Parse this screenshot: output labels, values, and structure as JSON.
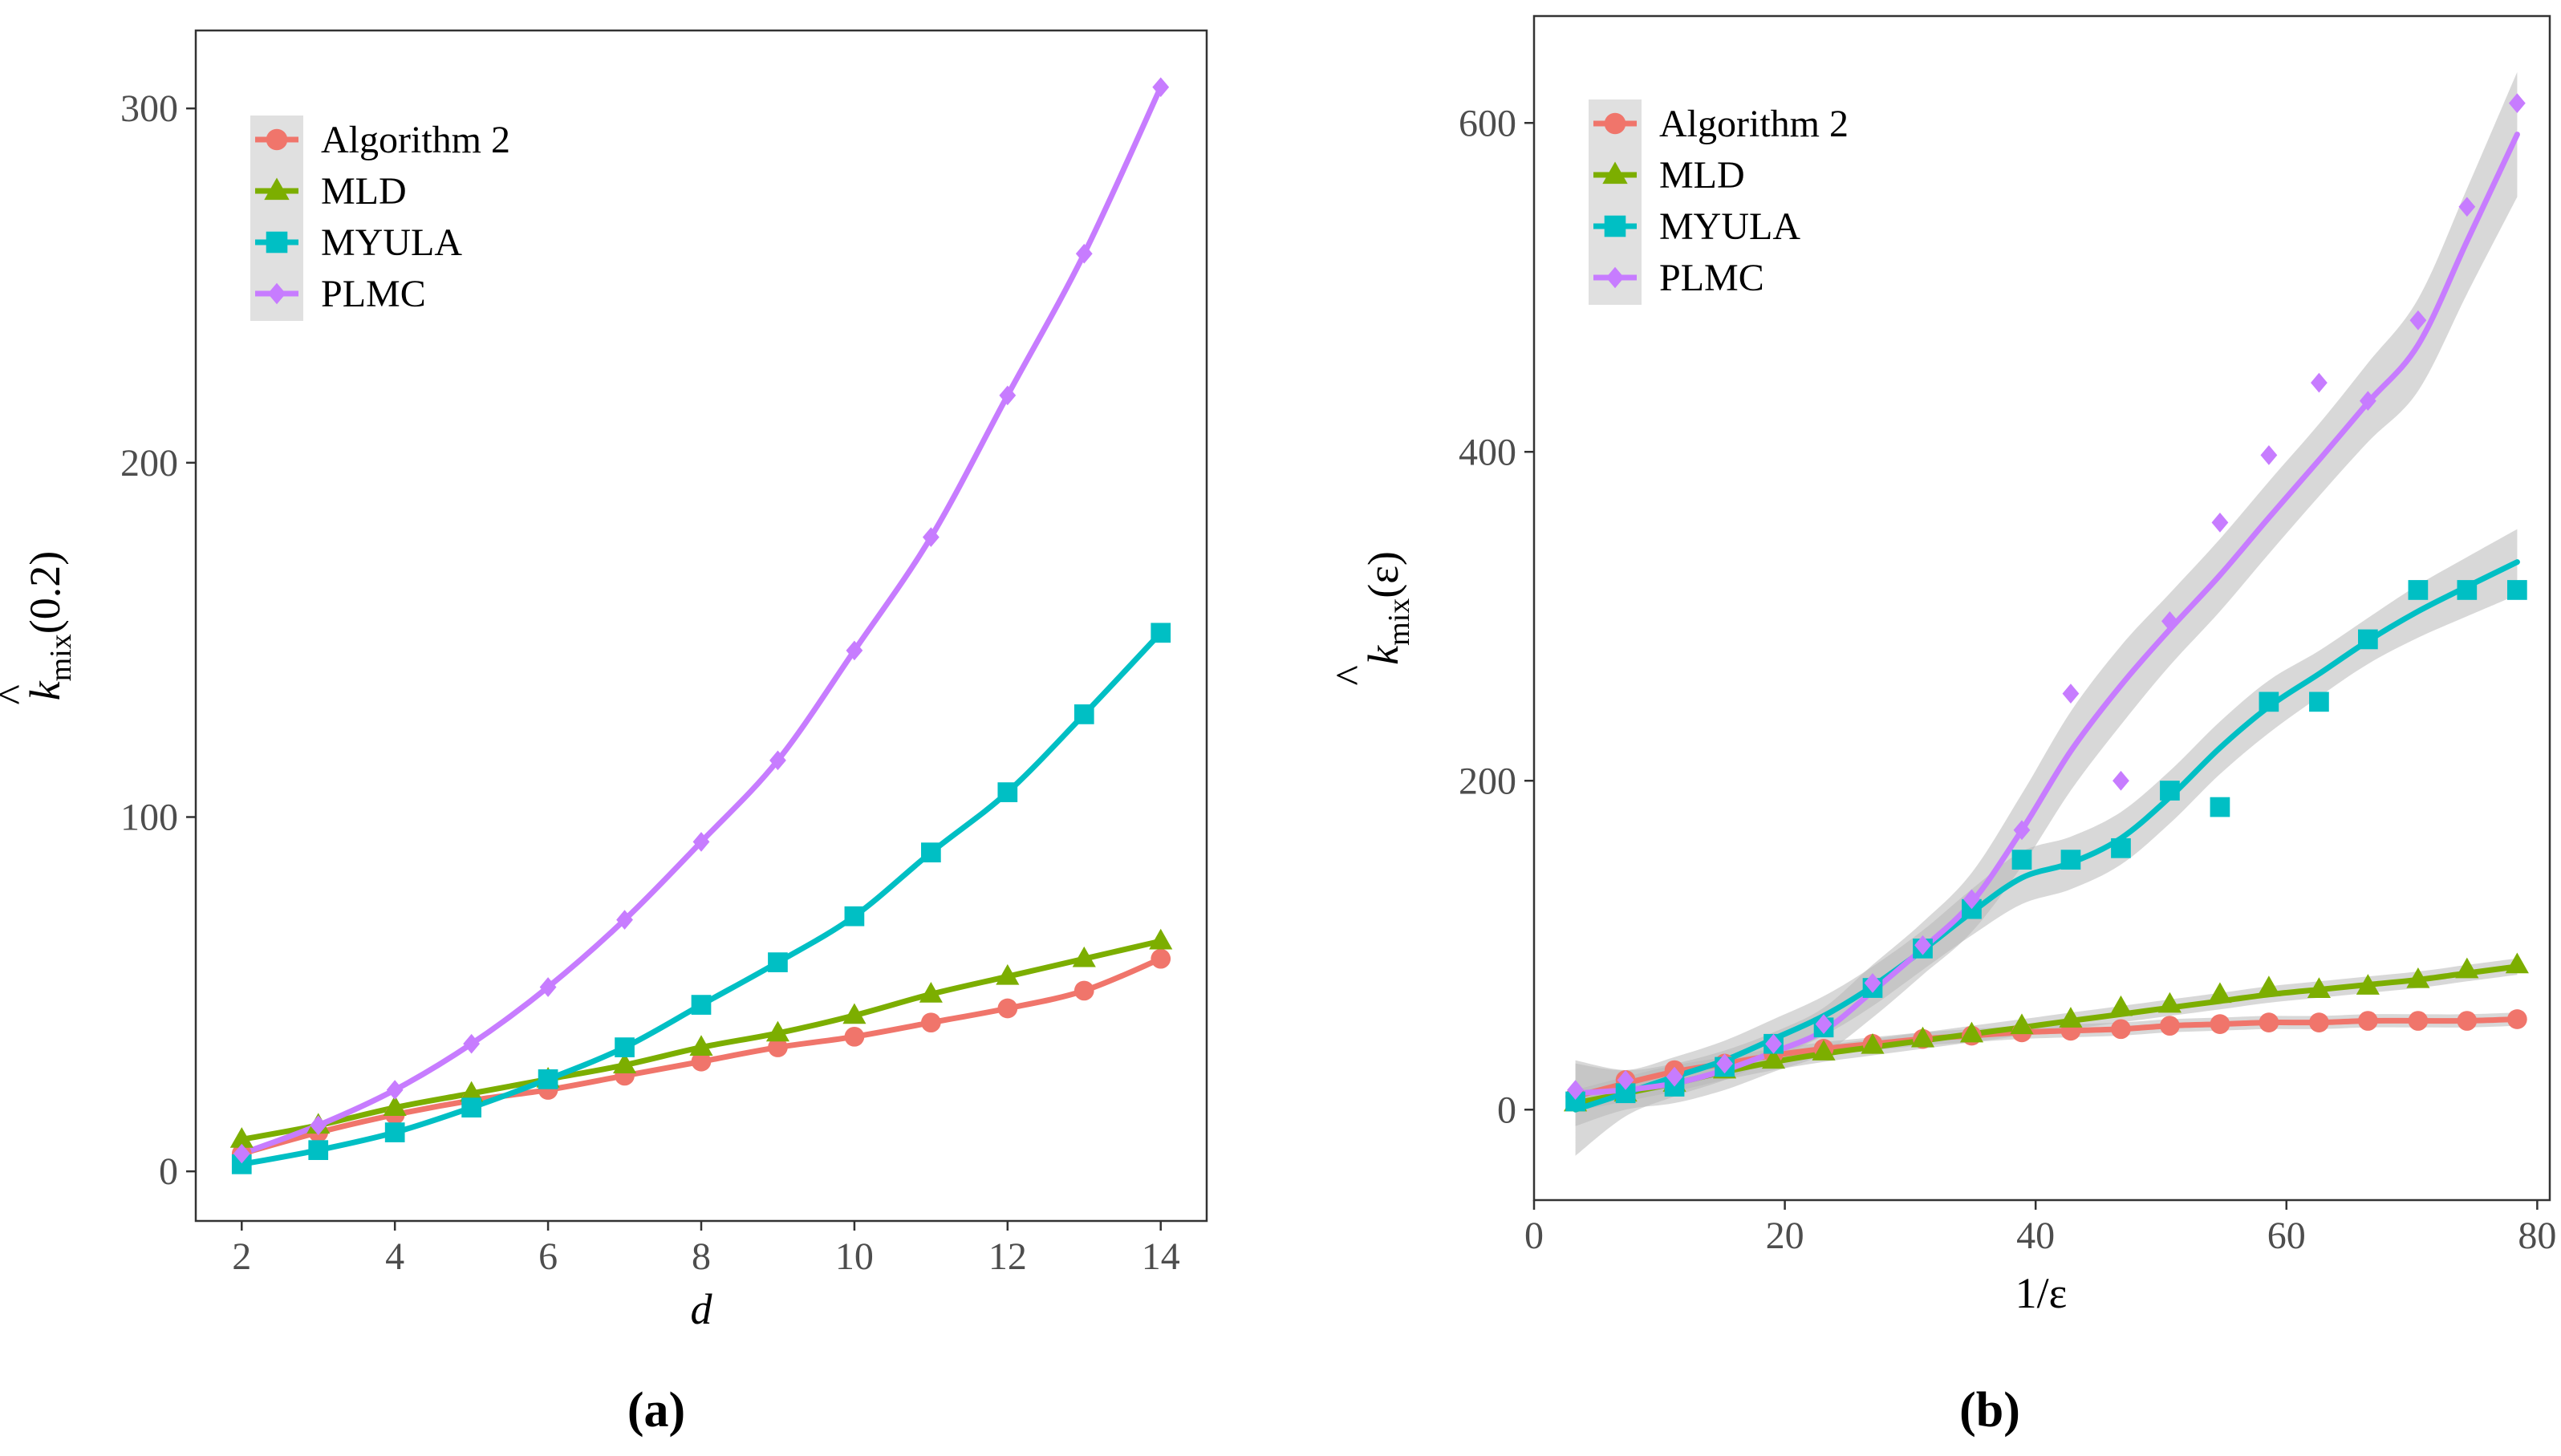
{
  "colors": {
    "Algorithm 2": "#F0756B",
    "MLD": "#7CAE00",
    "MYULA": "#00BFC4",
    "PLMC": "#C77CFF",
    "ribbon": "#b8b8b8",
    "axis": "#333333"
  },
  "chart_data": [
    {
      "type": "line",
      "panel_label": "(a)",
      "xlabel": "d",
      "ylabel": {
        "hat": "^",
        "k": "k",
        "sub": "mix",
        "arg": "(0.2)"
      },
      "xlim": [
        1.4,
        14.6
      ],
      "ylim": [
        -14,
        322
      ],
      "xticks": [
        2,
        4,
        6,
        8,
        10,
        12,
        14
      ],
      "yticks": [
        0,
        100,
        200,
        300
      ],
      "legend_position": "top-left",
      "x": [
        2,
        3,
        4,
        5,
        6,
        7,
        8,
        9,
        10,
        11,
        12,
        13,
        14
      ],
      "series": [
        {
          "name": "Algorithm 2",
          "marker": "circle",
          "values": [
            5,
            11,
            16,
            20,
            23,
            27,
            31,
            35,
            38,
            42,
            46,
            51,
            60
          ]
        },
        {
          "name": "MLD",
          "marker": "triangle",
          "values": [
            9,
            13,
            18,
            22,
            26,
            30,
            35,
            39,
            44,
            50,
            55,
            60,
            65
          ]
        },
        {
          "name": "MYULA",
          "marker": "square",
          "values": [
            2,
            6,
            11,
            18,
            26,
            35,
            47,
            59,
            72,
            90,
            107,
            129,
            152
          ]
        },
        {
          "name": "PLMC",
          "marker": "diamond",
          "values": [
            5,
            13,
            23,
            36,
            52,
            71,
            93,
            116,
            147,
            179,
            219,
            259,
            306
          ]
        }
      ]
    },
    {
      "type": "scatter",
      "panel_label": "(b)",
      "xlabel": "1/ε",
      "ylabel": {
        "hat": "^",
        "k": "k",
        "sub": "mix",
        "arg": "(ε)"
      },
      "xlim": [
        0,
        81
      ],
      "ylim": [
        -55,
        665
      ],
      "xticks": [
        0,
        20,
        40,
        60,
        80
      ],
      "yticks": [
        0,
        200,
        400,
        600
      ],
      "legend_position": "top-left",
      "x": [
        3.3,
        7.3,
        11.2,
        15.2,
        19.1,
        23.1,
        27,
        31,
        34.9,
        38.9,
        42.8,
        46.8,
        50.7,
        54.7,
        58.6,
        62.6,
        66.5,
        70.5,
        74.4,
        78.4
      ],
      "series": [
        {
          "name": "Algorithm 2",
          "marker": "circle",
          "values": [
            8,
            18,
            24,
            28,
            34,
            37,
            40,
            43,
            45,
            47,
            48,
            49,
            51,
            52,
            53,
            53,
            54,
            54,
            54,
            55
          ],
          "smooth": [
            8,
            16,
            23,
            28,
            33,
            37,
            40,
            43,
            45,
            47,
            48,
            49,
            51,
            52,
            53,
            53,
            54,
            54,
            54,
            55
          ],
          "band": [
            4,
            4,
            4,
            4,
            4,
            4,
            4,
            4,
            4,
            4,
            4,
            4,
            4,
            4,
            4,
            4,
            4,
            4,
            4,
            4
          ]
        },
        {
          "name": "MLD",
          "marker": "triangle",
          "values": [
            4,
            10,
            16,
            24,
            30,
            35,
            39,
            43,
            46,
            51,
            55,
            62,
            64,
            70,
            74,
            73,
            75,
            79,
            85,
            88
          ],
          "smooth": [
            4,
            10,
            16,
            23,
            29,
            34,
            38,
            42,
            46,
            50,
            54,
            58,
            62,
            66,
            70,
            73,
            76,
            79,
            83,
            87
          ],
          "band": [
            5,
            5,
            5,
            5,
            5,
            5,
            5,
            5,
            5,
            5,
            5,
            5,
            5,
            5,
            5,
            5,
            5,
            5,
            5,
            5
          ]
        },
        {
          "name": "MYULA",
          "marker": "square",
          "values": [
            5,
            10,
            14,
            26,
            40,
            50,
            74,
            98,
            122,
            152,
            152,
            159,
            194,
            184,
            248,
            248,
            286,
            316,
            316,
            316
          ],
          "smooth": [
            0,
            10,
            20,
            30,
            43,
            57,
            75,
            97,
            120,
            141,
            150,
            165,
            190,
            220,
            245,
            265,
            285,
            303,
            318,
            333
          ],
          "band": [
            28,
            14,
            12,
            12,
            12,
            12,
            12,
            12,
            14,
            16,
            16,
            16,
            16,
            16,
            16,
            14,
            14,
            16,
            18,
            20
          ]
        },
        {
          "name": "PLMC",
          "marker": "diamond",
          "values": [
            12,
            18,
            20,
            28,
            40,
            52,
            77,
            100,
            128,
            170,
            253,
            200,
            297,
            357,
            398,
            442,
            431,
            480,
            549,
            612
          ],
          "smooth": [
            10,
            12,
            16,
            24,
            35,
            48,
            72,
            98,
            126,
            170,
            218,
            258,
            292,
            325,
            360,
            395,
            430,
            465,
            528,
            593
          ],
          "band": [
            20,
            12,
            12,
            12,
            12,
            14,
            16,
            16,
            18,
            22,
            24,
            24,
            22,
            22,
            22,
            22,
            24,
            28,
            32,
            38
          ]
        }
      ]
    }
  ]
}
